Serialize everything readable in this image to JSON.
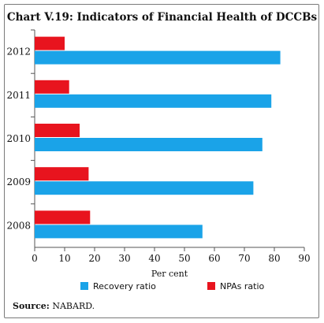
{
  "chart_data": {
    "type": "bar",
    "orientation": "horizontal",
    "title": "Chart V.19: Indicators of Financial Health of DCCBs",
    "xlabel": "Per cent",
    "ylabel": "",
    "categories": [
      "2012",
      "2011",
      "2010",
      "2009",
      "2008"
    ],
    "series": [
      {
        "name": "NPAs ratio",
        "color": "#e8141e",
        "values": [
          10,
          11.5,
          15,
          18,
          18.5
        ]
      },
      {
        "name": "Recovery ratio",
        "color": "#1aa3e8",
        "values": [
          82,
          79,
          76,
          73,
          56
        ]
      }
    ],
    "xlim": [
      0,
      90
    ],
    "xticks": [
      "0",
      "10",
      "20",
      "30",
      "40",
      "50",
      "60",
      "70",
      "80",
      "90"
    ],
    "legend": [
      "Recovery ratio",
      "NPAs ratio"
    ],
    "legend_position": "bottom",
    "grid": false
  },
  "source": {
    "label": "Source:",
    "text": "NABARD."
  }
}
